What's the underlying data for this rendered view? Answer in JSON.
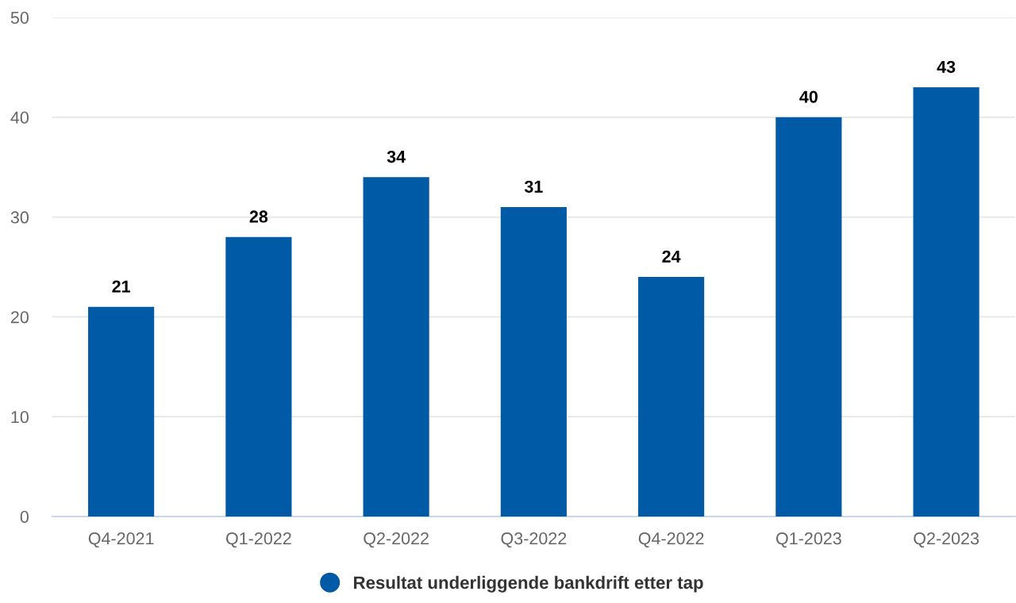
{
  "chart_data": {
    "type": "bar",
    "categories": [
      "Q4-2021",
      "Q1-2022",
      "Q2-2022",
      "Q3-2022",
      "Q4-2022",
      "Q1-2023",
      "Q2-2023"
    ],
    "series": [
      {
        "name": "Resultat underliggende bankdrift etter tap",
        "color": "#005aa5",
        "values": [
          21,
          28,
          34,
          31,
          24,
          40,
          43
        ]
      }
    ],
    "ylim": [
      0,
      50
    ],
    "yticks": [
      0,
      10,
      20,
      30,
      40,
      50
    ],
    "grid": "y",
    "legend": "bottom",
    "data_labels": true,
    "marker": "circle"
  }
}
